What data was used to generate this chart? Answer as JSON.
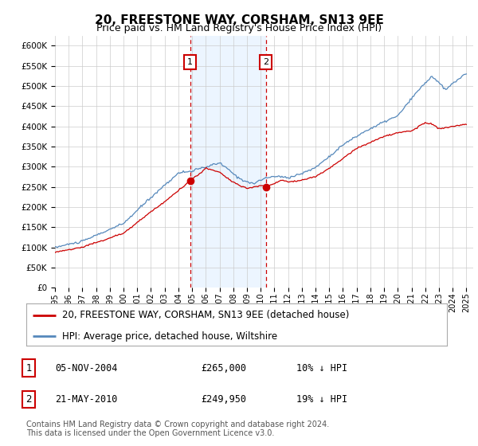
{
  "title": "20, FREESTONE WAY, CORSHAM, SN13 9EE",
  "subtitle": "Price paid vs. HM Land Registry's House Price Index (HPI)",
  "ylabel_ticks": [
    "£0",
    "£50K",
    "£100K",
    "£150K",
    "£200K",
    "£250K",
    "£300K",
    "£350K",
    "£400K",
    "£450K",
    "£500K",
    "£550K",
    "£600K"
  ],
  "ytick_values": [
    0,
    50000,
    100000,
    150000,
    200000,
    250000,
    300000,
    350000,
    400000,
    450000,
    500000,
    550000,
    600000
  ],
  "ylim": [
    0,
    625000
  ],
  "xlim_start": 1995.0,
  "xlim_end": 2025.5,
  "sale1_date": 2004.85,
  "sale1_price": 265000,
  "sale1_label": "1",
  "sale2_date": 2010.38,
  "sale2_price": 249950,
  "sale2_label": "2",
  "shade_color": "#ddeeff",
  "shade_alpha": 0.55,
  "red_line_color": "#cc0000",
  "blue_line_color": "#5588bb",
  "grid_color": "#cccccc",
  "background_color": "#ffffff",
  "legend_label_red": "20, FREESTONE WAY, CORSHAM, SN13 9EE (detached house)",
  "legend_label_blue": "HPI: Average price, detached house, Wiltshire",
  "footnote": "Contains HM Land Registry data © Crown copyright and database right 2024.\nThis data is licensed under the Open Government Licence v3.0.",
  "table_rows": [
    [
      "1",
      "05-NOV-2004",
      "£265,000",
      "10% ↓ HPI"
    ],
    [
      "2",
      "21-MAY-2010",
      "£249,950",
      "19% ↓ HPI"
    ]
  ]
}
